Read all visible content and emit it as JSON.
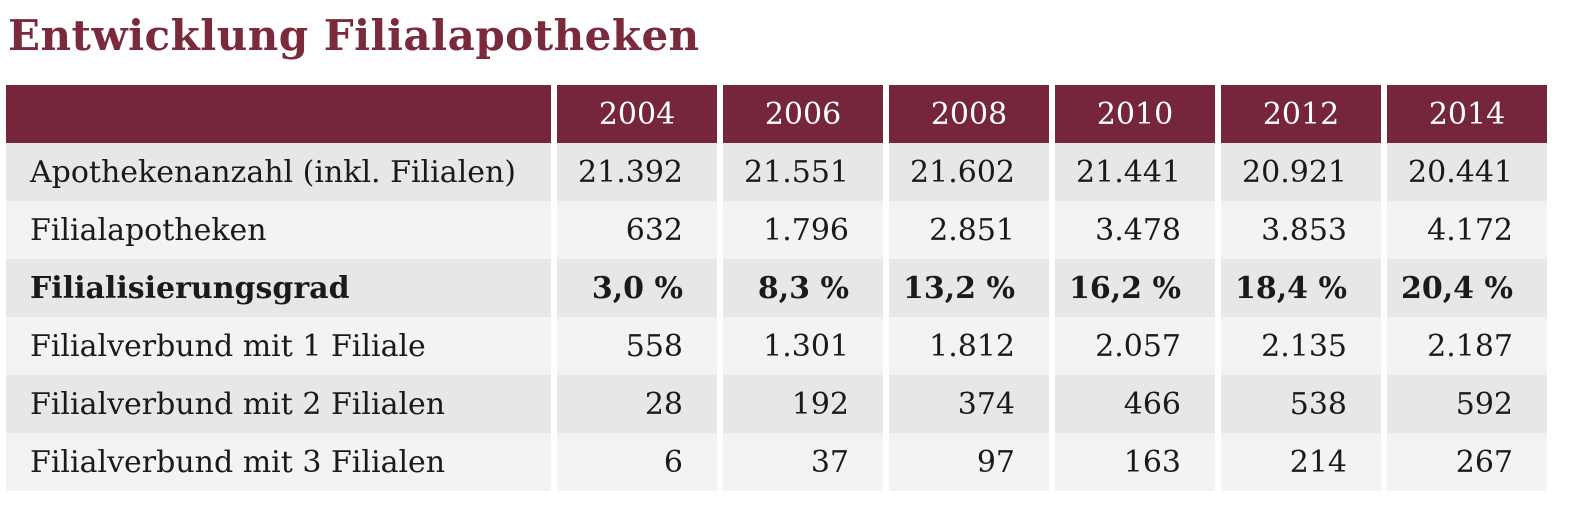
{
  "chart_data": {
    "type": "table",
    "title": "Entwicklung Filialapotheken",
    "columns": [
      "2004",
      "2006",
      "2008",
      "2010",
      "2012",
      "2014"
    ],
    "rows": [
      {
        "label": "Apothekenanzahl (inkl. Filialen)",
        "values": [
          "21.392",
          "21.551",
          "21.602",
          "21.441",
          "20.921",
          "20.441"
        ],
        "bold": false
      },
      {
        "label": "Filialapotheken",
        "values": [
          "632",
          "1.796",
          "2.851",
          "3.478",
          "3.853",
          "4.172"
        ],
        "bold": false
      },
      {
        "label": "Filialisierungsgrad",
        "values": [
          "3,0 %",
          "8,3 %",
          "13,2 %",
          "16,2 %",
          "18,4 %",
          "20,4 %"
        ],
        "bold": true
      },
      {
        "label": "Filialverbund mit 1 Filiale",
        "values": [
          "558",
          "1.301",
          "1.812",
          "2.057",
          "2.135",
          "2.187"
        ],
        "bold": false
      },
      {
        "label": "Filialverbund mit 2 Filialen",
        "values": [
          "28",
          "192",
          "374",
          "466",
          "538",
          "592"
        ],
        "bold": false
      },
      {
        "label": "Filialverbund mit 3 Filialen",
        "values": [
          "6",
          "37",
          "97",
          "163",
          "214",
          "267"
        ],
        "bold": false
      }
    ]
  },
  "colors": {
    "accent": "#75263a",
    "title": "#7a2a3b",
    "row_odd": "#e7e7e7",
    "row_even": "#f3f3f3"
  }
}
